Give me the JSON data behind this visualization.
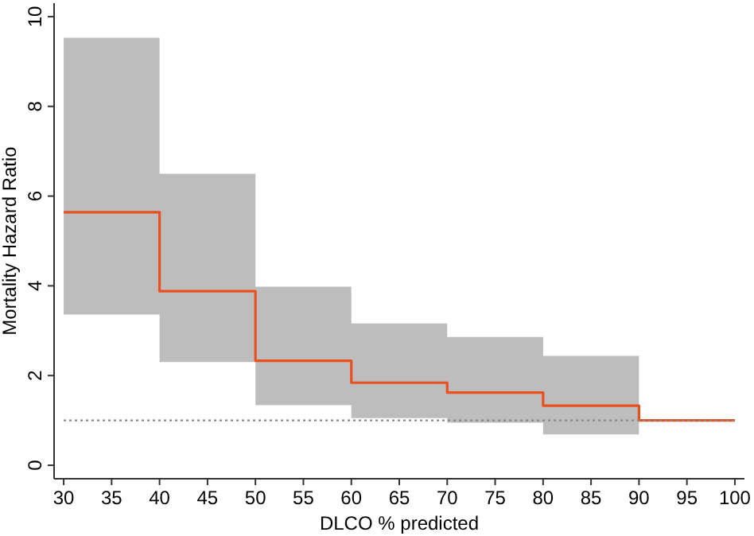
{
  "chart_data": {
    "type": "step",
    "xlabel": "DLCO % predicted",
    "ylabel": "Mortality Hazard Ratio",
    "x": [
      30,
      40,
      50,
      60,
      70,
      80,
      90,
      100
    ],
    "series": [
      {
        "color": "#e8501f",
        "values": [
          5.64,
          3.88,
          2.33,
          1.84,
          1.62,
          1.33,
          1.0,
          1.0
        ],
        "lower": [
          3.36,
          2.3,
          1.34,
          1.05,
          0.95,
          0.69,
          0.69,
          null
        ],
        "upper": [
          9.53,
          6.5,
          3.98,
          3.16,
          2.86,
          2.44,
          2.44,
          null
        ]
      }
    ],
    "xlim": [
      29,
      101
    ],
    "xticks": [
      30,
      35,
      40,
      45,
      50,
      55,
      60,
      65,
      70,
      75,
      80,
      85,
      90,
      95,
      100
    ],
    "ylim": [
      -0.3,
      10.3
    ],
    "yticks": [
      0,
      2,
      4,
      6,
      8,
      10
    ],
    "ref_lines": [
      {
        "axis": "y",
        "value": 1,
        "color": "#888888",
        "line_style": "dotted"
      }
    ],
    "grid": false
  }
}
